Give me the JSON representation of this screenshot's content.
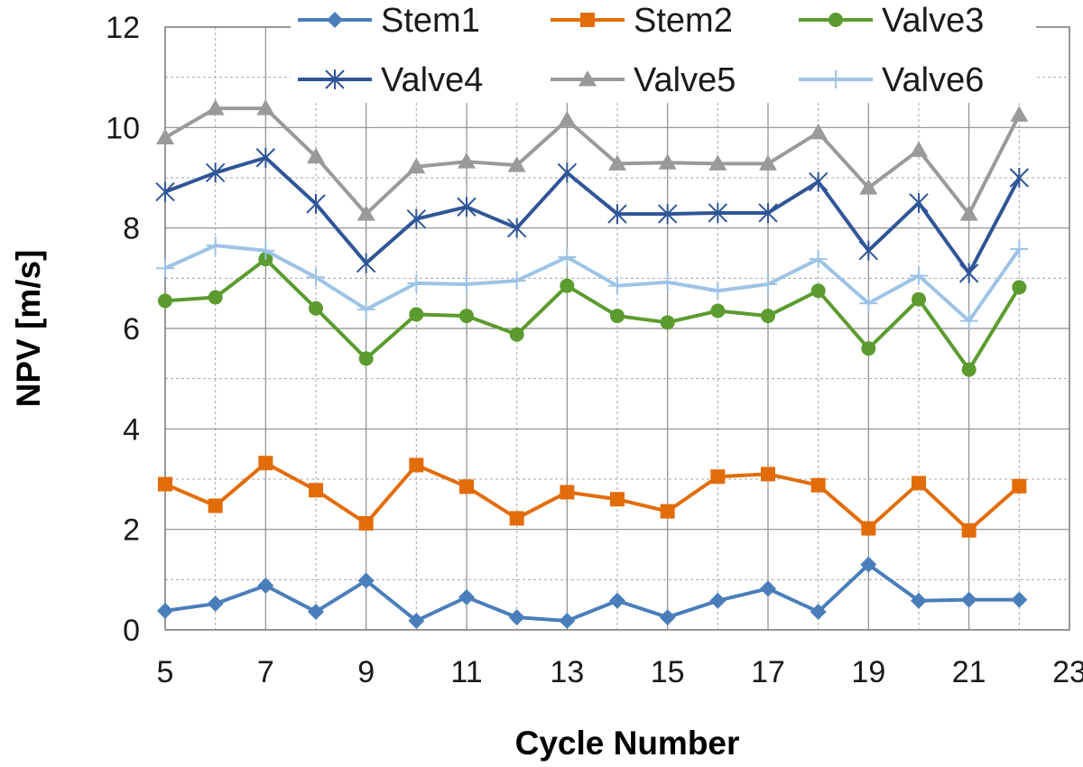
{
  "chart_data": {
    "type": "line",
    "title": "",
    "xlabel": "Cycle Number",
    "ylabel": "NPV [m/s]",
    "xlim": [
      5,
      23
    ],
    "ylim": [
      0,
      12
    ],
    "x_ticks": [
      5,
      7,
      9,
      11,
      13,
      15,
      17,
      19,
      21,
      23
    ],
    "y_ticks": [
      0,
      2,
      4,
      6,
      8,
      10,
      12
    ],
    "x_minor_grid": [
      6,
      8,
      10,
      12,
      14,
      16,
      18,
      20,
      22
    ],
    "y_minor_grid": [
      1,
      3,
      5,
      7,
      9,
      11
    ],
    "grid": true,
    "legend_position": "top",
    "x": [
      5,
      6,
      7,
      8,
      9,
      10,
      11,
      12,
      13,
      14,
      15,
      16,
      17,
      18,
      19,
      20,
      21,
      22
    ],
    "series": [
      {
        "name": "Stem1",
        "color": "#4a7ebb",
        "marker": "diamond",
        "values": [
          0.38,
          0.52,
          0.88,
          0.36,
          0.98,
          0.18,
          0.65,
          0.25,
          0.18,
          0.58,
          0.25,
          0.58,
          0.82,
          0.36,
          1.3,
          0.58,
          0.6,
          0.6
        ]
      },
      {
        "name": "Stem2",
        "color": "#e36c0a",
        "marker": "square",
        "values": [
          2.9,
          2.47,
          3.32,
          2.78,
          2.12,
          3.28,
          2.85,
          2.22,
          2.74,
          2.6,
          2.36,
          3.05,
          3.1,
          2.88,
          2.02,
          2.92,
          1.98,
          2.86
        ]
      },
      {
        "name": "Valve3",
        "color": "#5b9b2f",
        "marker": "circle",
        "values": [
          6.55,
          6.62,
          7.38,
          6.4,
          5.4,
          6.28,
          6.25,
          5.88,
          6.85,
          6.25,
          6.12,
          6.35,
          6.25,
          6.75,
          5.6,
          6.58,
          5.18,
          6.82
        ]
      },
      {
        "name": "Valve4",
        "color": "#2f5597",
        "marker": "asterisk",
        "values": [
          8.72,
          9.1,
          9.4,
          8.48,
          7.3,
          8.18,
          8.42,
          8.0,
          9.1,
          8.28,
          8.28,
          8.3,
          8.3,
          8.92,
          7.55,
          8.5,
          7.1,
          9.0
        ]
      },
      {
        "name": "Valve5",
        "color": "#9a9a9a",
        "marker": "triangle",
        "values": [
          9.8,
          10.38,
          10.38,
          9.42,
          8.28,
          9.22,
          9.32,
          9.25,
          10.15,
          9.28,
          9.3,
          9.28,
          9.28,
          9.9,
          8.8,
          9.55,
          8.28,
          10.25
        ]
      },
      {
        "name": "Valve6",
        "color": "#9dc3e6",
        "marker": "plus",
        "values": [
          7.2,
          7.65,
          7.55,
          7.02,
          6.38,
          6.9,
          6.88,
          6.95,
          7.42,
          6.85,
          6.92,
          6.75,
          6.88,
          7.38,
          6.5,
          7.05,
          6.15,
          7.58
        ]
      }
    ]
  }
}
